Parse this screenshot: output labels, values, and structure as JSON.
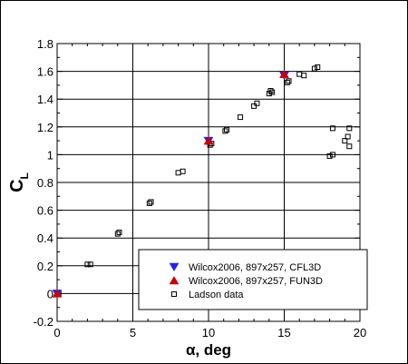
{
  "chart_data": {
    "type": "scatter",
    "title": "",
    "xlabel": "α, deg",
    "ylabel_main": "C",
    "ylabel_sub": "L",
    "xlim": [
      0,
      20
    ],
    "ylim": [
      -0.2,
      1.8
    ],
    "xticks": [
      0,
      5,
      10,
      15,
      20
    ],
    "yticks": [
      -0.2,
      0,
      0.2,
      0.4,
      0.6,
      0.8,
      1,
      1.2,
      1.4,
      1.6,
      1.8
    ],
    "xtick_labels": [
      "0",
      "5",
      "10",
      "15",
      "20"
    ],
    "ytick_labels": [
      "-0.2",
      "0",
      "0.2",
      "0.4",
      "0.6",
      "0.8",
      "1",
      "1.2",
      "1.4",
      "1.6",
      "1.8"
    ],
    "grid": true,
    "legend_position": "bottom-right",
    "series": [
      {
        "name": "Wilcox2006, 897x257, CFL3D",
        "marker": "triangle-down",
        "color": "#1f1fff",
        "x": [
          0,
          10,
          15
        ],
        "y": [
          0,
          1.1,
          1.57
        ]
      },
      {
        "name": "Wilcox2006, 897x257, FUN3D",
        "marker": "triangle-up",
        "color": "#d00000",
        "x": [
          0,
          10,
          15
        ],
        "y": [
          0,
          1.1,
          1.58
        ]
      },
      {
        "name": "Ladson data",
        "marker": "square-open",
        "color": "#000000",
        "x": [
          0.1,
          2.0,
          2.2,
          4.0,
          4.1,
          6.1,
          6.2,
          8.0,
          8.3,
          10.1,
          10.2,
          11.1,
          11.2,
          12.1,
          13.0,
          13.2,
          14.0,
          14.2,
          14.1,
          15.2,
          15.3,
          16.0,
          16.3,
          17.0,
          17.2,
          18.0,
          18.2,
          18.2,
          19.0,
          19.2,
          19.3,
          19.3
        ],
        "y": [
          0.0,
          0.21,
          0.21,
          0.43,
          0.44,
          0.65,
          0.66,
          0.87,
          0.88,
          1.07,
          1.08,
          1.17,
          1.18,
          1.27,
          1.35,
          1.37,
          1.44,
          1.45,
          1.46,
          1.52,
          1.53,
          1.58,
          1.57,
          1.62,
          1.63,
          0.99,
          1.0,
          1.19,
          1.1,
          1.13,
          1.06,
          1.19
        ]
      }
    ]
  }
}
